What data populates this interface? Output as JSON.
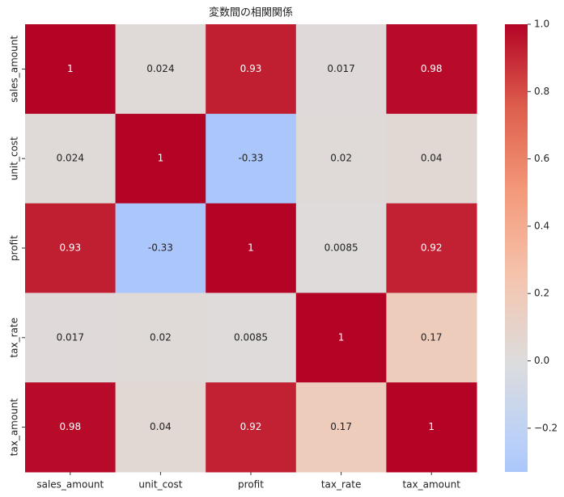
{
  "chart_data": {
    "type": "heatmap",
    "title": "変数間の相関関係",
    "categories": [
      "sales_amount",
      "unit_cost",
      "profit",
      "tax_rate",
      "tax_amount"
    ],
    "row_categories": [
      "sales_amount",
      "unit_cost",
      "profit",
      "tax_rate",
      "tax_amount"
    ],
    "z": [
      [
        1,
        0.024,
        0.93,
        0.017,
        0.98
      ],
      [
        0.024,
        1,
        -0.33,
        0.02,
        0.04
      ],
      [
        0.93,
        -0.33,
        1,
        0.0085,
        0.92
      ],
      [
        0.017,
        0.02,
        0.0085,
        1,
        0.17
      ],
      [
        0.98,
        0.04,
        0.92,
        0.17,
        1
      ]
    ],
    "cmap": "coolwarm",
    "center": 0,
    "clim": [
      -0.33,
      1
    ],
    "cticks": [
      {
        "value": -0.2,
        "label": "−0.2"
      },
      {
        "value": 0,
        "label": "0.0"
      },
      0.2,
      0.4,
      0.6,
      0.8,
      {
        "value": 1,
        "label": "1.0"
      }
    ]
  }
}
